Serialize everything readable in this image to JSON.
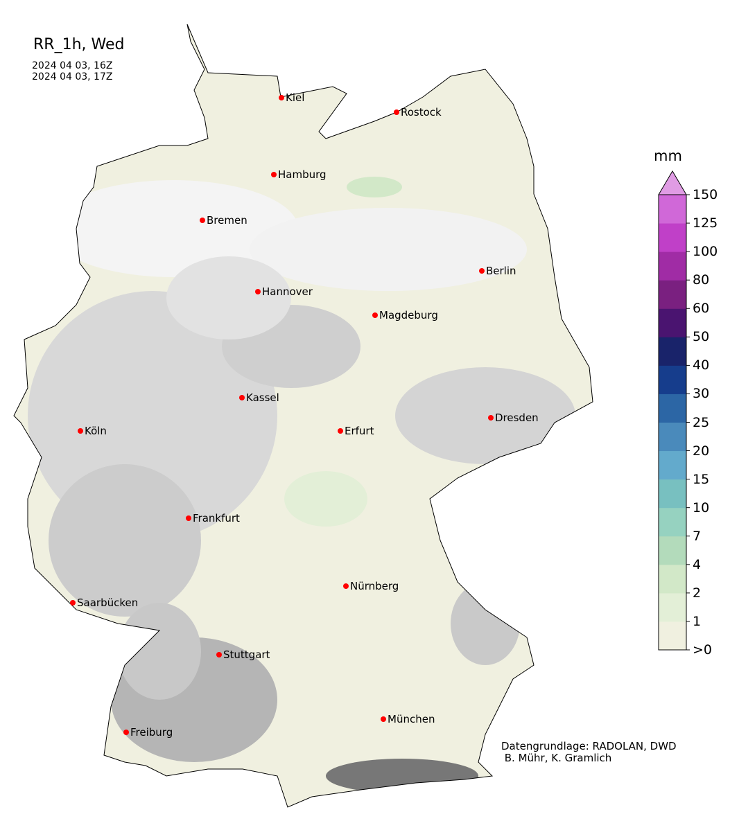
{
  "title": "RR_1h, Wed",
  "period": [
    "2024 04 03, 16Z",
    "2024 04 03, 17Z"
  ],
  "credit": [
    "Datengrundlage: RADOLAN, DWD",
    " B. Mühr, K. Gramlich"
  ],
  "colorbar": {
    "unit": "mm",
    "ticks": [
      ">0",
      "1",
      "2",
      "4",
      "7",
      "10",
      "15",
      "20",
      "25",
      "30",
      "40",
      "50",
      "60",
      "80",
      "100",
      "125",
      "150"
    ],
    "colors": [
      "#f0f0e0",
      "#e3efd7",
      "#d2e8c8",
      "#b3dbbb",
      "#96d2c0",
      "#78c0c0",
      "#63aacc",
      "#4a8abb",
      "#2c66a5",
      "#163d8c",
      "#19236a",
      "#4a1470",
      "#7a2080",
      "#a02ca5",
      "#c040c8",
      "#d068d8"
    ],
    "extend_color": "#e09ce4"
  },
  "cities": [
    {
      "name": "Kiel"
    },
    {
      "name": "Rostock"
    },
    {
      "name": "Hamburg"
    },
    {
      "name": "Bremen"
    },
    {
      "name": "Berlin"
    },
    {
      "name": "Hannover"
    },
    {
      "name": "Magdeburg"
    },
    {
      "name": "Kassel"
    },
    {
      "name": "Dresden"
    },
    {
      "name": "Köln"
    },
    {
      "name": "Erfurt"
    },
    {
      "name": "Frankfurt"
    },
    {
      "name": "Nürnberg"
    },
    {
      "name": "Saarbücken"
    },
    {
      "name": "Stuttgart"
    },
    {
      "name": "München"
    },
    {
      "name": "Freiburg"
    }
  ],
  "marker_color": "#ff0000"
}
